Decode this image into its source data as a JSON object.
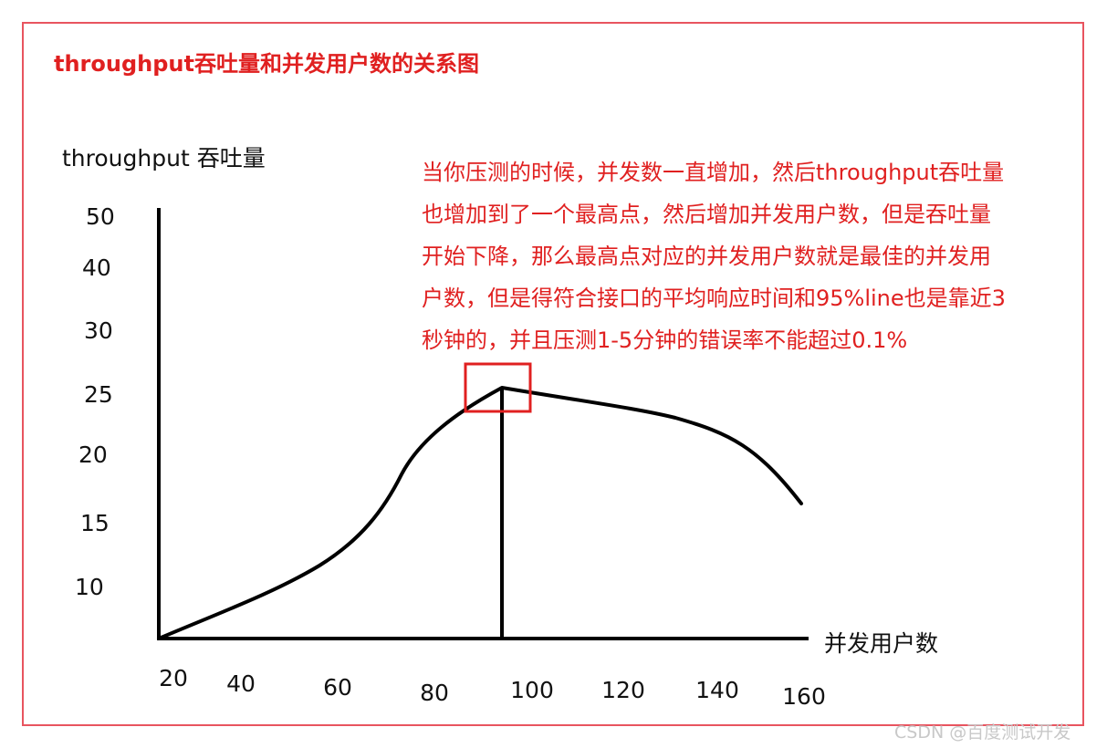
{
  "chart_data": {
    "type": "line",
    "title": "throughput吞吐量和并发用户数的关系图",
    "ylabel": "throughput 吞吐量",
    "xlabel": "并发用户数",
    "y_ticks": [
      "50",
      "40",
      "30",
      "25",
      "20",
      "15",
      "10"
    ],
    "x_ticks": [
      "20",
      "40",
      "60",
      "80",
      "100",
      "120",
      "140",
      "160"
    ],
    "annotation_lines": [
      "当你压测的时候，并发数一直增加，然后throughput吞吐量",
      "也增加到了一个最高点，然后增加并发用户数，但是吞吐量",
      "开始下降，那么最高点对应的并发用户数就是最佳的并发用",
      "户数，但是得符合接口的平均响应时间和95%line也是靠近3",
      "秒钟的，并且压测1-5分钟的错误率不能超过0.1%"
    ],
    "series": [
      {
        "x": [
          20,
          40,
          60,
          75,
          80,
          86,
          95,
          120,
          140,
          145,
          158
        ],
        "y": [
          5,
          8,
          13,
          17,
          20,
          23,
          25,
          24,
          22,
          19,
          15
        ]
      }
    ],
    "peak": {
      "x": 95,
      "y": 25
    },
    "line_color": "#000000",
    "highlight_color": "#e02020"
  },
  "watermark": "CSDN @百度测试开发"
}
